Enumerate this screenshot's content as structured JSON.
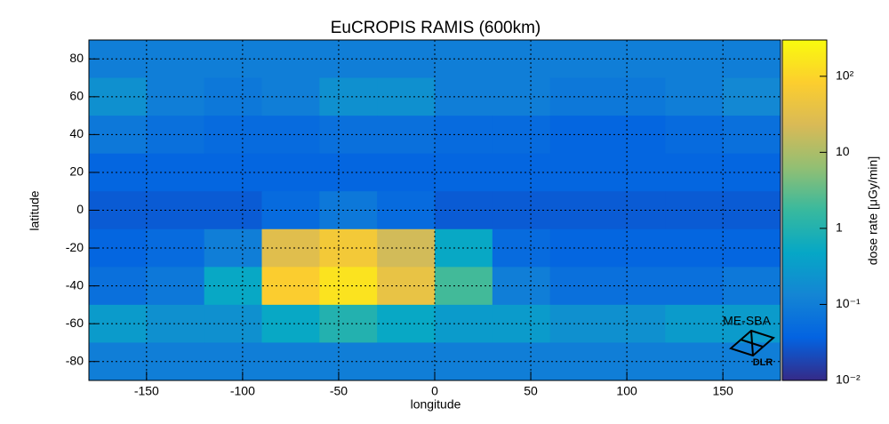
{
  "chart_data": {
    "type": "heatmap",
    "title": "EuCROPIS RAMIS (600km)",
    "x_label": "longitude",
    "y_label": "latitude",
    "colorbar_label": "dose rate [μGy/min]",
    "annotations": [
      "ME-SBA",
      "DLR"
    ],
    "xlim": [
      -180,
      180
    ],
    "ylim": [
      -90,
      90
    ],
    "xticks": [
      -150,
      -100,
      -50,
      0,
      50,
      100,
      150
    ],
    "yticks": [
      -80,
      -60,
      -40,
      -20,
      0,
      20,
      40,
      60,
      80
    ],
    "x": [
      -165,
      -135,
      -105,
      -75,
      -45,
      -15,
      15,
      45,
      75,
      105,
      135,
      165
    ],
    "y": [
      80,
      60,
      40,
      20,
      0,
      -20,
      -40,
      -60,
      -80
    ],
    "cell_size": [
      30,
      20
    ],
    "values": [
      [
        0.1,
        0.1,
        0.1,
        0.1,
        0.1,
        0.1,
        0.1,
        0.1,
        0.1,
        0.1,
        0.1,
        0.1
      ],
      [
        0.2,
        0.1,
        0.08,
        0.1,
        0.2,
        0.2,
        0.1,
        0.1,
        0.08,
        0.08,
        0.1,
        0.15
      ],
      [
        0.08,
        0.06,
        0.05,
        0.05,
        0.06,
        0.06,
        0.05,
        0.05,
        0.04,
        0.04,
        0.05,
        0.06
      ],
      [
        0.04,
        0.04,
        0.04,
        0.04,
        0.04,
        0.04,
        0.04,
        0.04,
        0.04,
        0.04,
        0.04,
        0.04
      ],
      [
        0.03,
        0.03,
        0.03,
        0.05,
        0.08,
        0.05,
        0.03,
        0.03,
        0.03,
        0.03,
        0.03,
        0.03
      ],
      [
        0.04,
        0.05,
        0.1,
        30,
        60,
        20,
        0.5,
        0.05,
        0.04,
        0.04,
        0.04,
        0.04
      ],
      [
        0.06,
        0.08,
        0.5,
        80,
        150,
        40,
        2,
        0.1,
        0.06,
        0.06,
        0.06,
        0.08
      ],
      [
        0.3,
        0.2,
        0.2,
        0.5,
        1,
        0.5,
        0.3,
        0.3,
        0.2,
        0.2,
        0.3,
        0.3
      ],
      [
        0.1,
        0.1,
        0.1,
        0.1,
        0.1,
        0.1,
        0.1,
        0.1,
        0.1,
        0.1,
        0.1,
        0.1
      ]
    ],
    "clim": [
      0.01,
      300
    ],
    "clog": true,
    "cticks": [
      {
        "value": 0.01,
        "label": "10⁻²"
      },
      {
        "value": 0.1,
        "label": "10⁻¹"
      },
      1,
      10,
      {
        "value": 100,
        "label": "10²"
      }
    ],
    "colormap": [
      "#352a87",
      "#0363e1",
      "#1485d4",
      "#06a7c6",
      "#38b99e",
      "#92bf73",
      "#d9ba56",
      "#fcce2e",
      "#f9fb0e"
    ],
    "grid": true
  }
}
